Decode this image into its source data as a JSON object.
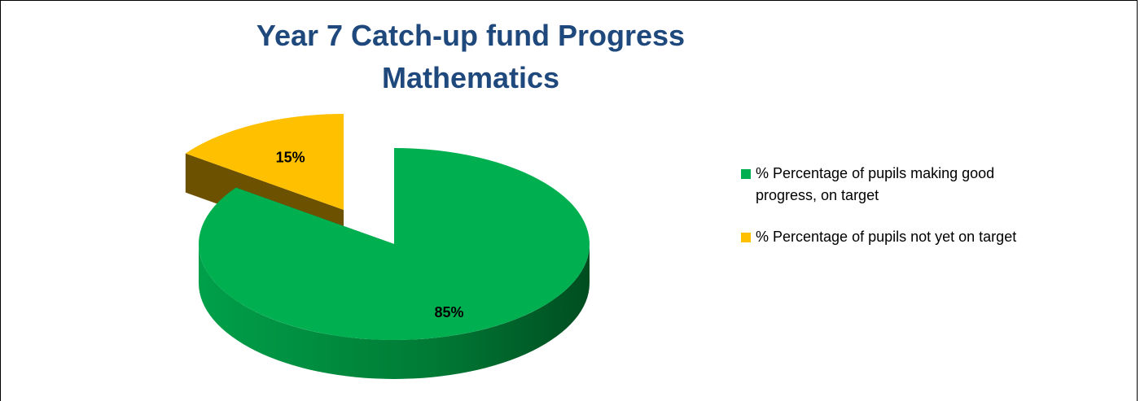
{
  "chart_data": {
    "type": "pie",
    "title": "Year 7 Catch-up fund Progress Mathematics",
    "series": [
      {
        "name": "% Percentage of pupils making good progress, on target",
        "color": "#00b050",
        "values": [
          85
        ],
        "value_labels": [
          "85%"
        ]
      },
      {
        "name": "% Percentage of pupils not yet on target",
        "color": "#ffc000",
        "values": [
          15
        ],
        "value_labels": [
          "15%"
        ]
      }
    ]
  }
}
